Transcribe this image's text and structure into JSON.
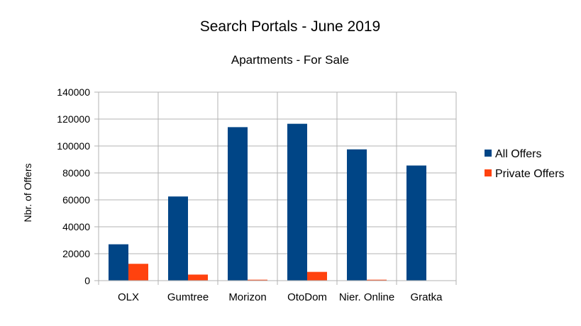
{
  "chart_data": {
    "type": "bar",
    "title": "Search Portals - June 2019",
    "subtitle": "Apartments - For Sale",
    "xlabel": "",
    "ylabel": "Nbr. of Offers",
    "categories": [
      "OLX",
      "Gumtree",
      "Morizon",
      "OtoDom",
      "Nier. Online",
      "Gratka"
    ],
    "series": [
      {
        "name": "All Offers",
        "color": "#004586",
        "values": [
          27000,
          62500,
          114000,
          116500,
          97500,
          85500
        ]
      },
      {
        "name": "Private Offers",
        "color": "#ff420e",
        "values": [
          12500,
          4500,
          700,
          6500,
          700,
          0
        ]
      }
    ],
    "ylim": [
      0,
      140000
    ],
    "yticks": [
      "0",
      "20000",
      "40000",
      "60000",
      "80000",
      "100000",
      "120000",
      "140000"
    ],
    "grid": true,
    "legend": "right"
  }
}
